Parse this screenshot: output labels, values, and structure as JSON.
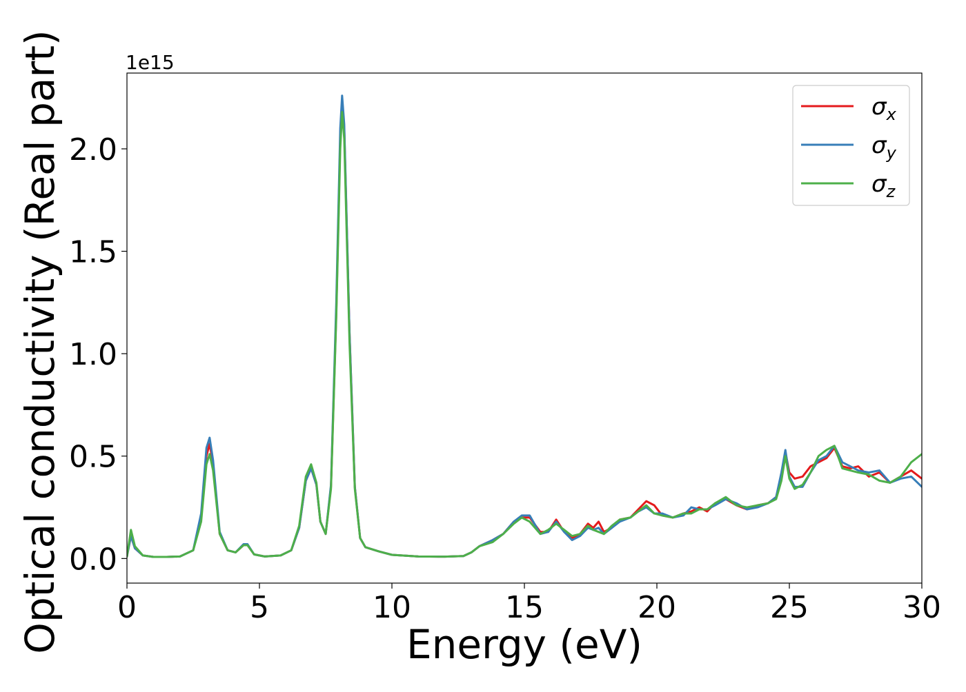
{
  "chart_data": {
    "type": "line",
    "xlabel": "Energy (eV)",
    "ylabel": "Optical conductivity (Real part)",
    "y_offset_text": "1e15",
    "xlim": [
      0,
      30
    ],
    "ylim": [
      -0.12,
      2.37
    ],
    "x_ticks": [
      0,
      5,
      10,
      15,
      20,
      25,
      30
    ],
    "x_tick_labels": [
      "0",
      "5",
      "10",
      "15",
      "20",
      "25",
      "30"
    ],
    "y_ticks": [
      0.0,
      0.5,
      1.0,
      1.5,
      2.0
    ],
    "y_tick_labels": [
      "0.0",
      "0.5",
      "1.0",
      "1.5",
      "2.0"
    ],
    "grid": false,
    "legend_position": "top-right",
    "y_unit_multiplier": 1000000000000000.0,
    "series": [
      {
        "name": "σx",
        "legend_symbol": "σ",
        "legend_subscript": "x",
        "color": "#e41a1c",
        "points": [
          [
            0,
            0.01
          ],
          [
            0.15,
            0.11
          ],
          [
            0.3,
            0.05
          ],
          [
            0.6,
            0.015
          ],
          [
            1.0,
            0.008
          ],
          [
            1.5,
            0.008
          ],
          [
            2.0,
            0.01
          ],
          [
            2.5,
            0.04
          ],
          [
            2.8,
            0.2
          ],
          [
            3.0,
            0.5
          ],
          [
            3.12,
            0.56
          ],
          [
            3.25,
            0.46
          ],
          [
            3.5,
            0.12
          ],
          [
            3.8,
            0.04
          ],
          [
            4.1,
            0.03
          ],
          [
            4.4,
            0.065
          ],
          [
            4.55,
            0.065
          ],
          [
            4.8,
            0.02
          ],
          [
            5.2,
            0.01
          ],
          [
            5.8,
            0.015
          ],
          [
            6.2,
            0.04
          ],
          [
            6.5,
            0.15
          ],
          [
            6.75,
            0.38
          ],
          [
            6.95,
            0.44
          ],
          [
            7.15,
            0.36
          ],
          [
            7.3,
            0.18
          ],
          [
            7.5,
            0.12
          ],
          [
            7.7,
            0.35
          ],
          [
            7.9,
            1.2
          ],
          [
            8.05,
            2.05
          ],
          [
            8.12,
            2.21
          ],
          [
            8.2,
            2.1
          ],
          [
            8.4,
            1.1
          ],
          [
            8.6,
            0.35
          ],
          [
            8.8,
            0.1
          ],
          [
            9.0,
            0.055
          ],
          [
            9.5,
            0.035
          ],
          [
            10.0,
            0.018
          ],
          [
            11.0,
            0.01
          ],
          [
            12.0,
            0.009
          ],
          [
            12.7,
            0.012
          ],
          [
            13.0,
            0.03
          ],
          [
            13.3,
            0.06
          ],
          [
            13.8,
            0.09
          ],
          [
            14.2,
            0.12
          ],
          [
            14.6,
            0.18
          ],
          [
            14.9,
            0.2
          ],
          [
            15.2,
            0.2
          ],
          [
            15.6,
            0.13
          ],
          [
            15.9,
            0.13
          ],
          [
            16.2,
            0.19
          ],
          [
            16.5,
            0.13
          ],
          [
            16.8,
            0.1
          ],
          [
            17.1,
            0.12
          ],
          [
            17.4,
            0.17
          ],
          [
            17.6,
            0.15
          ],
          [
            17.8,
            0.18
          ],
          [
            18.0,
            0.13
          ],
          [
            18.3,
            0.15
          ],
          [
            18.6,
            0.19
          ],
          [
            19.0,
            0.2
          ],
          [
            19.3,
            0.24
          ],
          [
            19.6,
            0.28
          ],
          [
            19.9,
            0.26
          ],
          [
            20.2,
            0.21
          ],
          [
            20.6,
            0.2
          ],
          [
            21.0,
            0.22
          ],
          [
            21.3,
            0.23
          ],
          [
            21.6,
            0.25
          ],
          [
            21.9,
            0.23
          ],
          [
            22.2,
            0.27
          ],
          [
            22.6,
            0.29
          ],
          [
            23.0,
            0.26
          ],
          [
            23.4,
            0.24
          ],
          [
            23.8,
            0.26
          ],
          [
            24.2,
            0.27
          ],
          [
            24.5,
            0.3
          ],
          [
            24.7,
            0.4
          ],
          [
            24.85,
            0.52
          ],
          [
            25.0,
            0.42
          ],
          [
            25.2,
            0.39
          ],
          [
            25.5,
            0.4
          ],
          [
            25.8,
            0.45
          ],
          [
            26.1,
            0.47
          ],
          [
            26.4,
            0.49
          ],
          [
            26.7,
            0.54
          ],
          [
            27.0,
            0.45
          ],
          [
            27.3,
            0.44
          ],
          [
            27.6,
            0.45
          ],
          [
            28.0,
            0.4
          ],
          [
            28.4,
            0.42
          ],
          [
            28.8,
            0.37
          ],
          [
            29.2,
            0.4
          ],
          [
            29.6,
            0.43
          ],
          [
            30.0,
            0.39
          ]
        ]
      },
      {
        "name": "σy",
        "legend_symbol": "σ",
        "legend_subscript": "y",
        "color": "#377eb8",
        "points": [
          [
            0,
            0.01
          ],
          [
            0.15,
            0.11
          ],
          [
            0.3,
            0.05
          ],
          [
            0.6,
            0.015
          ],
          [
            1.0,
            0.008
          ],
          [
            1.5,
            0.008
          ],
          [
            2.0,
            0.01
          ],
          [
            2.5,
            0.04
          ],
          [
            2.8,
            0.22
          ],
          [
            3.0,
            0.54
          ],
          [
            3.12,
            0.59
          ],
          [
            3.25,
            0.48
          ],
          [
            3.5,
            0.13
          ],
          [
            3.8,
            0.04
          ],
          [
            4.1,
            0.03
          ],
          [
            4.4,
            0.07
          ],
          [
            4.55,
            0.07
          ],
          [
            4.8,
            0.02
          ],
          [
            5.2,
            0.01
          ],
          [
            5.8,
            0.015
          ],
          [
            6.2,
            0.04
          ],
          [
            6.5,
            0.15
          ],
          [
            6.75,
            0.38
          ],
          [
            6.95,
            0.44
          ],
          [
            7.15,
            0.36
          ],
          [
            7.3,
            0.18
          ],
          [
            7.5,
            0.12
          ],
          [
            7.7,
            0.36
          ],
          [
            7.9,
            1.25
          ],
          [
            8.05,
            2.1
          ],
          [
            8.12,
            2.26
          ],
          [
            8.2,
            2.12
          ],
          [
            8.4,
            1.1
          ],
          [
            8.6,
            0.35
          ],
          [
            8.8,
            0.1
          ],
          [
            9.0,
            0.055
          ],
          [
            9.5,
            0.035
          ],
          [
            10.0,
            0.018
          ],
          [
            11.0,
            0.01
          ],
          [
            12.0,
            0.009
          ],
          [
            12.7,
            0.012
          ],
          [
            13.0,
            0.03
          ],
          [
            13.3,
            0.06
          ],
          [
            13.8,
            0.09
          ],
          [
            14.2,
            0.12
          ],
          [
            14.6,
            0.18
          ],
          [
            14.9,
            0.21
          ],
          [
            15.2,
            0.21
          ],
          [
            15.6,
            0.12
          ],
          [
            15.9,
            0.13
          ],
          [
            16.2,
            0.18
          ],
          [
            16.5,
            0.13
          ],
          [
            16.8,
            0.09
          ],
          [
            17.1,
            0.11
          ],
          [
            17.4,
            0.15
          ],
          [
            17.6,
            0.14
          ],
          [
            17.8,
            0.15
          ],
          [
            18.0,
            0.12
          ],
          [
            18.3,
            0.15
          ],
          [
            18.6,
            0.18
          ],
          [
            19.0,
            0.2
          ],
          [
            19.3,
            0.23
          ],
          [
            19.6,
            0.25
          ],
          [
            19.9,
            0.22
          ],
          [
            20.2,
            0.22
          ],
          [
            20.6,
            0.2
          ],
          [
            21.0,
            0.21
          ],
          [
            21.3,
            0.25
          ],
          [
            21.6,
            0.24
          ],
          [
            21.9,
            0.24
          ],
          [
            22.2,
            0.26
          ],
          [
            22.6,
            0.29
          ],
          [
            23.0,
            0.27
          ],
          [
            23.4,
            0.24
          ],
          [
            23.8,
            0.25
          ],
          [
            24.2,
            0.27
          ],
          [
            24.5,
            0.3
          ],
          [
            24.7,
            0.42
          ],
          [
            24.85,
            0.53
          ],
          [
            25.0,
            0.4
          ],
          [
            25.2,
            0.35
          ],
          [
            25.5,
            0.35
          ],
          [
            25.8,
            0.42
          ],
          [
            26.1,
            0.48
          ],
          [
            26.4,
            0.5
          ],
          [
            26.7,
            0.55
          ],
          [
            27.0,
            0.47
          ],
          [
            27.3,
            0.45
          ],
          [
            27.6,
            0.43
          ],
          [
            28.0,
            0.42
          ],
          [
            28.4,
            0.43
          ],
          [
            28.8,
            0.37
          ],
          [
            29.2,
            0.39
          ],
          [
            29.6,
            0.4
          ],
          [
            30.0,
            0.35
          ]
        ]
      },
      {
        "name": "σz",
        "legend_symbol": "σ",
        "legend_subscript": "z",
        "color": "#4daf4a",
        "points": [
          [
            0,
            0.01
          ],
          [
            0.15,
            0.14
          ],
          [
            0.3,
            0.06
          ],
          [
            0.6,
            0.015
          ],
          [
            1.0,
            0.008
          ],
          [
            1.5,
            0.008
          ],
          [
            2.0,
            0.01
          ],
          [
            2.5,
            0.04
          ],
          [
            2.8,
            0.18
          ],
          [
            3.0,
            0.46
          ],
          [
            3.12,
            0.51
          ],
          [
            3.25,
            0.43
          ],
          [
            3.5,
            0.12
          ],
          [
            3.8,
            0.04
          ],
          [
            4.1,
            0.03
          ],
          [
            4.4,
            0.065
          ],
          [
            4.55,
            0.065
          ],
          [
            4.8,
            0.02
          ],
          [
            5.2,
            0.01
          ],
          [
            5.8,
            0.015
          ],
          [
            6.2,
            0.04
          ],
          [
            6.5,
            0.16
          ],
          [
            6.75,
            0.4
          ],
          [
            6.95,
            0.46
          ],
          [
            7.15,
            0.37
          ],
          [
            7.3,
            0.18
          ],
          [
            7.5,
            0.12
          ],
          [
            7.7,
            0.34
          ],
          [
            7.9,
            1.18
          ],
          [
            8.05,
            2.0
          ],
          [
            8.12,
            2.18
          ],
          [
            8.2,
            2.05
          ],
          [
            8.4,
            1.05
          ],
          [
            8.6,
            0.34
          ],
          [
            8.8,
            0.1
          ],
          [
            9.0,
            0.055
          ],
          [
            9.5,
            0.035
          ],
          [
            10.0,
            0.018
          ],
          [
            11.0,
            0.01
          ],
          [
            12.0,
            0.009
          ],
          [
            12.7,
            0.012
          ],
          [
            13.0,
            0.03
          ],
          [
            13.3,
            0.06
          ],
          [
            13.8,
            0.08
          ],
          [
            14.2,
            0.12
          ],
          [
            14.6,
            0.17
          ],
          [
            14.9,
            0.2
          ],
          [
            15.2,
            0.18
          ],
          [
            15.6,
            0.12
          ],
          [
            15.9,
            0.14
          ],
          [
            16.2,
            0.17
          ],
          [
            16.5,
            0.14
          ],
          [
            16.8,
            0.11
          ],
          [
            17.1,
            0.12
          ],
          [
            17.4,
            0.16
          ],
          [
            17.6,
            0.14
          ],
          [
            17.8,
            0.13
          ],
          [
            18.0,
            0.12
          ],
          [
            18.3,
            0.16
          ],
          [
            18.6,
            0.19
          ],
          [
            19.0,
            0.2
          ],
          [
            19.3,
            0.23
          ],
          [
            19.6,
            0.26
          ],
          [
            19.9,
            0.22
          ],
          [
            20.2,
            0.21
          ],
          [
            20.6,
            0.2
          ],
          [
            21.0,
            0.22
          ],
          [
            21.3,
            0.22
          ],
          [
            21.6,
            0.24
          ],
          [
            21.9,
            0.24
          ],
          [
            22.2,
            0.27
          ],
          [
            22.6,
            0.3
          ],
          [
            23.0,
            0.26
          ],
          [
            23.4,
            0.25
          ],
          [
            23.8,
            0.26
          ],
          [
            24.2,
            0.27
          ],
          [
            24.5,
            0.29
          ],
          [
            24.7,
            0.38
          ],
          [
            24.85,
            0.5
          ],
          [
            25.0,
            0.39
          ],
          [
            25.2,
            0.34
          ],
          [
            25.5,
            0.36
          ],
          [
            25.8,
            0.42
          ],
          [
            26.1,
            0.5
          ],
          [
            26.4,
            0.53
          ],
          [
            26.7,
            0.55
          ],
          [
            27.0,
            0.44
          ],
          [
            27.3,
            0.43
          ],
          [
            27.6,
            0.42
          ],
          [
            28.0,
            0.41
          ],
          [
            28.4,
            0.38
          ],
          [
            28.8,
            0.37
          ],
          [
            29.2,
            0.4
          ],
          [
            29.6,
            0.47
          ],
          [
            30.0,
            0.51
          ]
        ]
      }
    ]
  }
}
